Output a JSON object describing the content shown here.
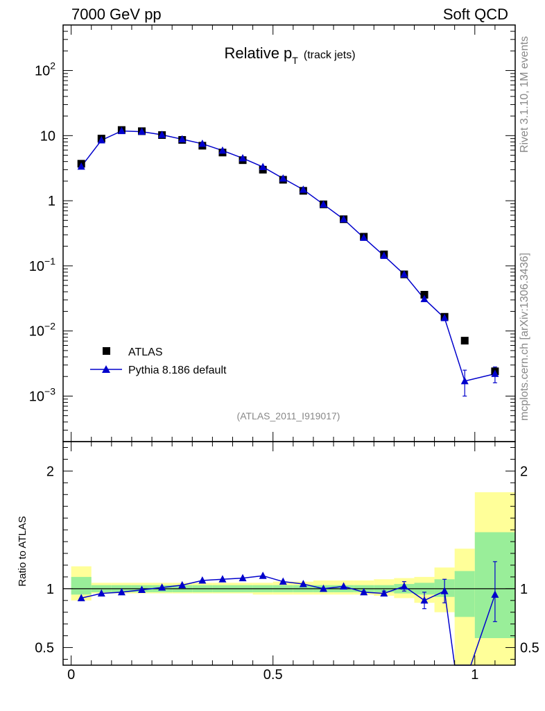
{
  "header": {
    "left": "7000 GeV pp",
    "right": "Soft QCD"
  },
  "side_labels": {
    "top": "Rivet 3.1.10,  1M events",
    "bottom": "mcplots.cern.ch [arXiv:1306.3436]"
  },
  "colors": {
    "mc": "#0000cc",
    "data": "#000000",
    "band_inner": "#99ee99",
    "band_outer": "#ffff99"
  },
  "chart_data": [
    {
      "type": "scatter",
      "title": "Relative p",
      "title_sub": "T",
      "title_suffix": "(track jets)",
      "analysis_label": "(ATLAS_2011_I919017)",
      "yscale": "log",
      "xlim": [
        -0.02,
        1.1
      ],
      "ylim": [
        0.0002,
        500
      ],
      "ytick_labels": [
        {
          "v": 0.001,
          "base": "10",
          "exp": "−3"
        },
        {
          "v": 0.01,
          "base": "10",
          "exp": "−2"
        },
        {
          "v": 0.1,
          "base": "10",
          "exp": "−1"
        },
        {
          "v": 1,
          "base": "1",
          "exp": ""
        },
        {
          "v": 10,
          "base": "10",
          "exp": ""
        },
        {
          "v": 100,
          "base": "10",
          "exp": "2"
        }
      ],
      "legend": {
        "position": "bottom-left",
        "data_label": "ATLAS",
        "mc_label": "Pythia 8.186 default"
      },
      "x": [
        0.025,
        0.075,
        0.125,
        0.175,
        0.225,
        0.275,
        0.325,
        0.375,
        0.425,
        0.475,
        0.525,
        0.575,
        0.625,
        0.675,
        0.725,
        0.775,
        0.825,
        0.875,
        0.925,
        0.975,
        1.05
      ],
      "series": [
        {
          "name": "ATLAS",
          "values": [
            3.7,
            9.0,
            12.2,
            11.7,
            10.2,
            8.6,
            7.0,
            5.5,
            4.2,
            3.0,
            2.1,
            1.42,
            0.88,
            0.52,
            0.28,
            0.15,
            0.074,
            0.036,
            0.0165,
            0.0071,
            0.0024
          ]
        },
        {
          "name": "Pythia 8.186 default",
          "values": [
            3.35,
            8.5,
            11.8,
            11.5,
            10.3,
            8.8,
            7.5,
            5.9,
            4.5,
            3.3,
            2.2,
            1.48,
            0.88,
            0.52,
            0.27,
            0.143,
            0.074,
            0.031,
            0.0158,
            0.0017,
            0.0022
          ],
          "err_low": [
            0,
            0,
            0,
            0,
            0,
            0,
            0,
            0,
            0,
            0,
            0,
            0,
            0,
            0,
            0,
            0,
            0,
            0,
            0,
            0.0007,
            0.0006
          ],
          "err_high": [
            0,
            0,
            0,
            0,
            0,
            0,
            0,
            0,
            0,
            0,
            0,
            0,
            0,
            0,
            0,
            0,
            0,
            0,
            0,
            0.0008,
            0.0006
          ]
        }
      ]
    },
    {
      "type": "line",
      "ylabel": "Ratio to ATLAS",
      "xlim": [
        -0.02,
        1.1
      ],
      "ylim": [
        0.35,
        2.25
      ],
      "x_ticks": [
        0,
        0.5,
        1
      ],
      "x_tick_labels": [
        "0",
        "0.5",
        "1"
      ],
      "y_ticks": [
        0.5,
        1,
        2
      ],
      "y_tick_labels": [
        "0.5",
        "1",
        "2"
      ],
      "bins": [
        [
          0.0,
          0.05
        ],
        [
          0.05,
          0.1
        ],
        [
          0.1,
          0.15
        ],
        [
          0.15,
          0.2
        ],
        [
          0.2,
          0.25
        ],
        [
          0.25,
          0.3
        ],
        [
          0.3,
          0.35
        ],
        [
          0.35,
          0.4
        ],
        [
          0.4,
          0.45
        ],
        [
          0.45,
          0.5
        ],
        [
          0.5,
          0.55
        ],
        [
          0.55,
          0.6
        ],
        [
          0.6,
          0.65
        ],
        [
          0.65,
          0.7
        ],
        [
          0.7,
          0.75
        ],
        [
          0.75,
          0.8
        ],
        [
          0.8,
          0.85
        ],
        [
          0.85,
          0.9
        ],
        [
          0.9,
          0.95
        ],
        [
          0.95,
          1.0
        ],
        [
          1.0,
          1.1
        ]
      ],
      "band_inner": [
        [
          0.95,
          1.1
        ],
        [
          0.97,
          1.03
        ],
        [
          0.97,
          1.03
        ],
        [
          0.97,
          1.03
        ],
        [
          0.97,
          1.03
        ],
        [
          0.97,
          1.03
        ],
        [
          0.97,
          1.03
        ],
        [
          0.97,
          1.03
        ],
        [
          0.97,
          1.03
        ],
        [
          0.97,
          1.03
        ],
        [
          0.97,
          1.03
        ],
        [
          0.97,
          1.03
        ],
        [
          0.97,
          1.03
        ],
        [
          0.97,
          1.03
        ],
        [
          0.97,
          1.03
        ],
        [
          0.97,
          1.03
        ],
        [
          0.96,
          1.04
        ],
        [
          0.95,
          1.05
        ],
        [
          0.93,
          1.08
        ],
        [
          0.76,
          1.15
        ],
        [
          0.58,
          1.48
        ]
      ],
      "band_outer": [
        [
          0.9,
          1.19
        ],
        [
          0.96,
          1.05
        ],
        [
          0.96,
          1.05
        ],
        [
          0.96,
          1.05
        ],
        [
          0.96,
          1.05
        ],
        [
          0.96,
          1.05
        ],
        [
          0.96,
          1.05
        ],
        [
          0.96,
          1.05
        ],
        [
          0.96,
          1.05
        ],
        [
          0.95,
          1.05
        ],
        [
          0.95,
          1.06
        ],
        [
          0.95,
          1.06
        ],
        [
          0.95,
          1.07
        ],
        [
          0.95,
          1.07
        ],
        [
          0.95,
          1.07
        ],
        [
          0.94,
          1.08
        ],
        [
          0.92,
          1.09
        ],
        [
          0.88,
          1.1
        ],
        [
          0.8,
          1.18
        ],
        [
          0.35,
          1.34
        ],
        [
          0.35,
          1.82
        ]
      ],
      "series": [
        {
          "name": "Pythia 8.186 default",
          "x": [
            0.025,
            0.075,
            0.125,
            0.175,
            0.225,
            0.275,
            0.325,
            0.375,
            0.425,
            0.475,
            0.525,
            0.575,
            0.625,
            0.675,
            0.725,
            0.775,
            0.825,
            0.875,
            0.925,
            0.95,
            0.99,
            1.05
          ],
          "values": [
            0.92,
            0.96,
            0.97,
            0.99,
            1.01,
            1.03,
            1.07,
            1.08,
            1.09,
            1.11,
            1.06,
            1.04,
            1.0,
            1.02,
            0.97,
            0.96,
            1.02,
            0.9,
            0.98,
            0.35,
            0.35,
            0.95
          ],
          "markers": [
            true,
            true,
            true,
            true,
            true,
            true,
            true,
            true,
            true,
            true,
            true,
            true,
            true,
            true,
            true,
            true,
            true,
            true,
            true,
            false,
            false,
            true
          ],
          "err_low": [
            0,
            0,
            0,
            0,
            0,
            0,
            0,
            0,
            0,
            0,
            0,
            0,
            0,
            0,
            0,
            0.02,
            0.04,
            0.07,
            0.1,
            0,
            0,
            0.23
          ],
          "err_high": [
            0,
            0,
            0,
            0,
            0,
            0,
            0,
            0,
            0,
            0,
            0,
            0,
            0,
            0,
            0.01,
            0.02,
            0.04,
            0.07,
            0.1,
            0,
            0,
            0.28
          ]
        }
      ]
    }
  ]
}
